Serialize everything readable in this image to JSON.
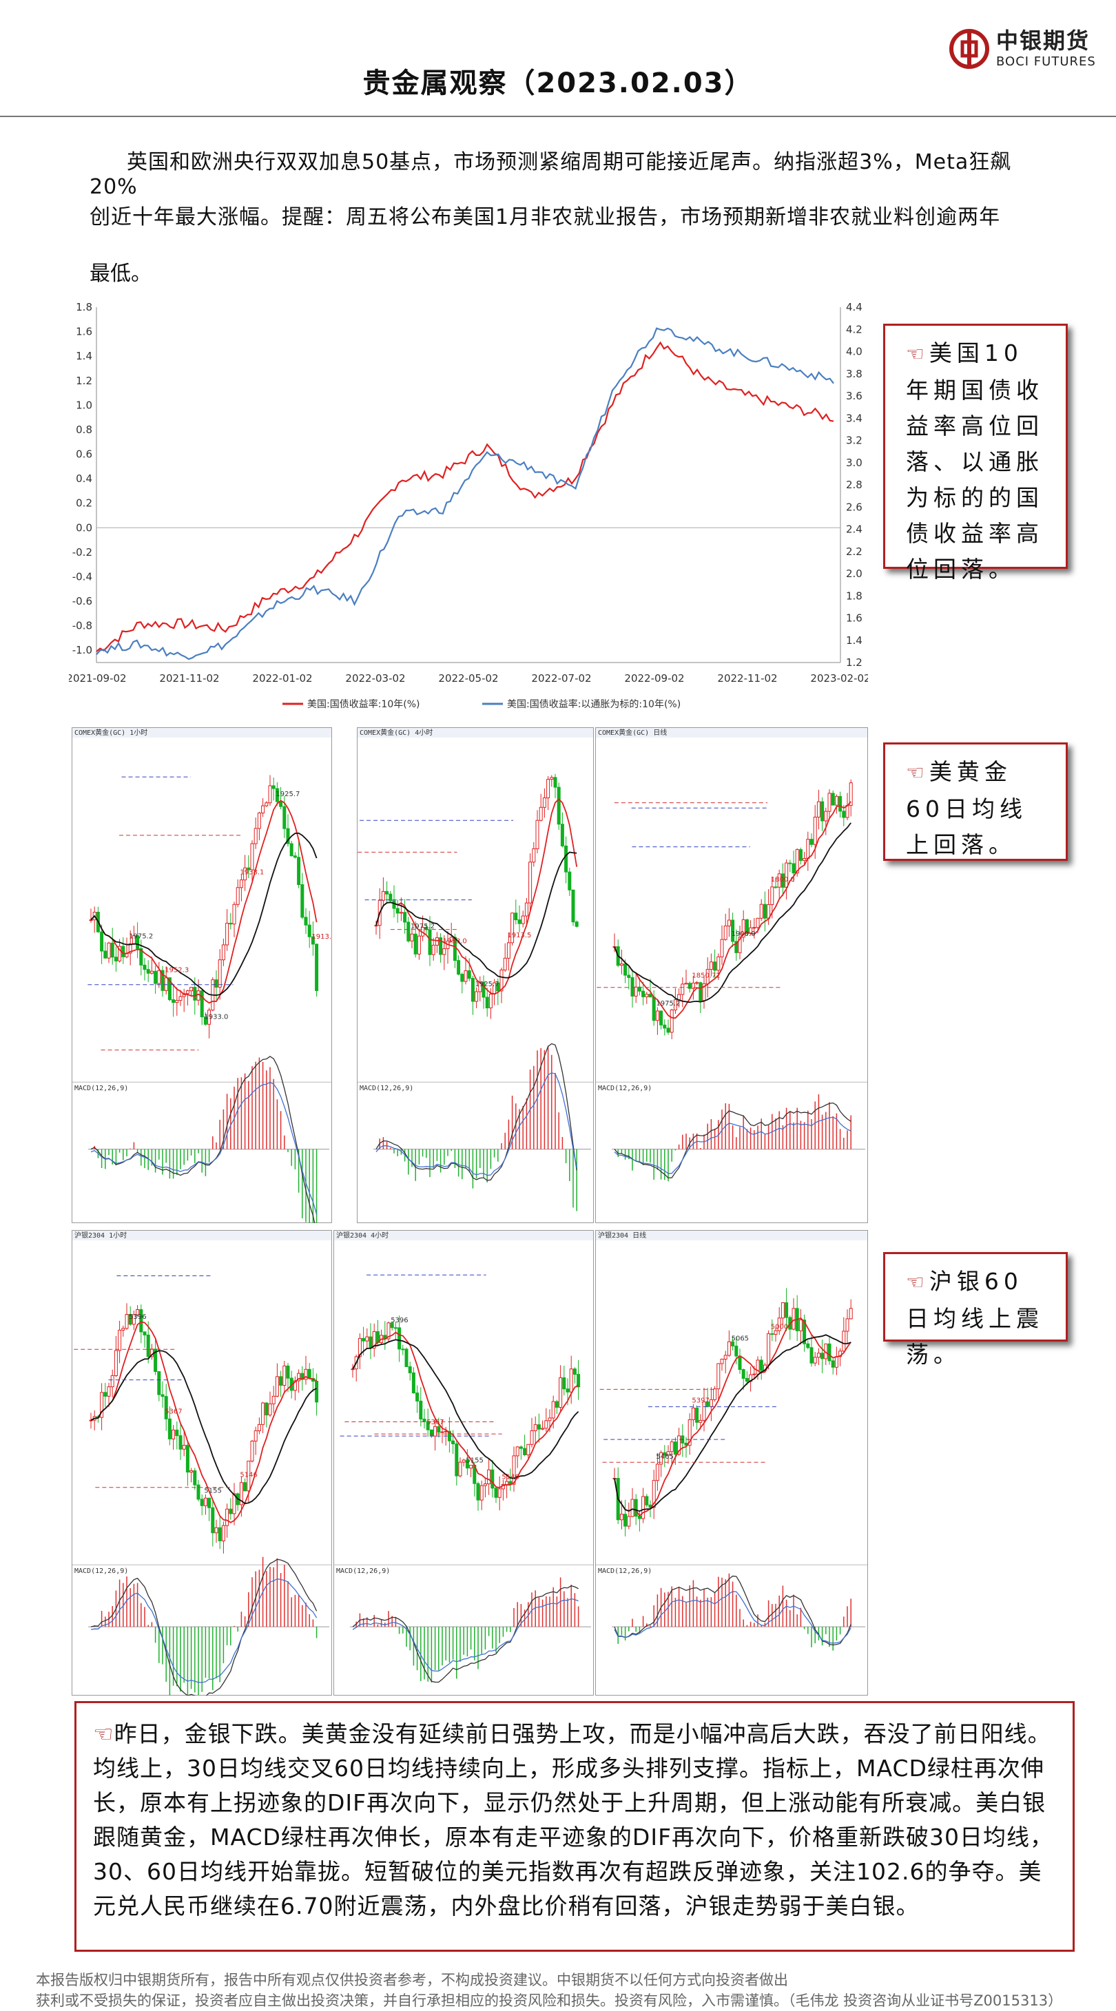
{
  "brand": {
    "cn": "中银期货",
    "en": "BOCI FUTURES"
  },
  "title": "贵金属观察（2023.02.03）",
  "intro": {
    "line1": "英国和欧洲央行双双加息50基点，市场预测紧缩周期可能接近尾声。纳指涨超3%，Meta狂飙20%",
    "line2": "创近十年最大涨幅。提醒：周五将公布美国1月非农就业报告，市场预期新增非农就业料创逾两年",
    "line3": "最低。"
  },
  "chart_data": {
    "type": "line",
    "x_ticks": [
      "2021-09-02",
      "2021-11-02",
      "2022-01-02",
      "2022-03-02",
      "2022-05-02",
      "2022-07-02",
      "2022-09-02",
      "2022-11-02",
      "2023-02-02"
    ],
    "left_axis_ticks": [
      "1.8",
      "1.6",
      "1.4",
      "1.2",
      "1.0",
      "0.8",
      "0.6",
      "0.4",
      "0.2",
      "0.0",
      "-0.2",
      "-0.4",
      "-0.6",
      "-0.8",
      "-1.0"
    ],
    "right_axis_ticks": [
      "4.4",
      "4.2",
      "4.0",
      "3.8",
      "3.6",
      "3.4",
      "3.2",
      "3.0",
      "2.8",
      "2.6",
      "2.4",
      "2.2",
      "2.0",
      "1.8",
      "1.6",
      "1.4",
      "1.2"
    ],
    "ylim_left": [
      -1.1,
      1.8
    ],
    "ylim_right": [
      1.2,
      4.4
    ],
    "series": [
      {
        "name": "美国:国债收益率:10年(%)",
        "axis": "right",
        "color": "#e02020",
        "x": [
          "2021-09",
          "2021-10",
          "2021-11",
          "2021-12",
          "2022-01",
          "2022-02",
          "2022-03",
          "2022-04",
          "2022-05",
          "2022-06",
          "2022-07",
          "2022-08",
          "2022-09",
          "2022-10",
          "2022-11",
          "2022-12",
          "2023-01",
          "2023-02"
        ],
        "values": [
          1.3,
          1.55,
          1.55,
          1.5,
          1.8,
          1.95,
          2.35,
          2.85,
          2.9,
          3.15,
          2.7,
          2.85,
          3.6,
          4.1,
          3.75,
          3.6,
          3.5,
          3.4
        ]
      },
      {
        "name": "美国:国债收益率:以通胀为标的:10年(%)",
        "axis": "left",
        "color": "#4a7fc1",
        "x": [
          "2021-09",
          "2021-10",
          "2021-11",
          "2021-12",
          "2022-01",
          "2022-02",
          "2022-03",
          "2022-04",
          "2022-05",
          "2022-06",
          "2022-07",
          "2022-08",
          "2022-09",
          "2022-10",
          "2022-11",
          "2022-12",
          "2023-01",
          "2023-02"
        ],
        "values": [
          -1.0,
          -0.95,
          -1.05,
          -0.95,
          -0.65,
          -0.5,
          -0.6,
          0.1,
          0.15,
          0.6,
          0.5,
          0.3,
          1.2,
          1.65,
          1.5,
          1.4,
          1.3,
          1.2
        ]
      }
    ]
  },
  "callouts": {
    "c1": "美国10年期国债收益率高位回落、以通胀为标的的国债收益率高位回落。",
    "c2": "美黄金60日均线上回落。",
    "c3": "沪银60日均线上震荡。"
  },
  "gold_panels": {
    "p1": {
      "head": "COMEX黄金(GC) 1小时",
      "labels": [
        "1975.2",
        "1952.3",
        "1933.0",
        "1938.1",
        "1925.7",
        "1913.5"
      ]
    },
    "p2": {
      "head": "COMEX黄金(GC) 4小时",
      "labels": [
        "1975.2",
        "1933.0",
        "1925.7",
        "1913.5"
      ]
    },
    "p3": {
      "head": "COMEX黄金(GC) 日线",
      "labels": [
        "1975.2",
        "1850.72",
        "1900.0",
        "1800.0"
      ]
    }
  },
  "silver_panels": {
    "p1": {
      "head": "沪银2304 1小时",
      "labels": [
        "5396",
        "5367",
        "5155",
        "5146"
      ]
    },
    "p2": {
      "head": "沪银2304 4小时",
      "labels": [
        "5396",
        "5367",
        "5155",
        "5146"
      ]
    },
    "p3": {
      "head": "沪银2304 日线",
      "labels": [
        "5465",
        "5397",
        "5065",
        "5000"
      ]
    }
  },
  "analysis": "昨日，金银下跌。美黄金没有延续前日强势上攻，而是小幅冲高后大跌，吞没了前日阳线。均线上，30日均线交叉60日均线持续向上，形成多头排列支撑。指标上，MACD绿柱再次伸长，原本有上拐迹象的DIF再次向下，显示仍然处于上升周期，但上涨动能有所衰减。美白银跟随黄金，MACD绿柱再次伸长，原本有走平迹象的DIF再次向下，价格重新跌破30日均线，30、60日均线开始靠拢。短暂破位的美元指数再次有超跌反弹迹象，关注102.6的争夺。美元兑人民币继续在6.70附近震荡，内外盘比价稍有回落，沪银走势弱于美白银。",
  "disclaimer": {
    "line1": "本报告版权归中银期货所有，报告中所有观点仅供投资者参考，不构成投资建议。中银期货不以任何方式向投资者做出",
    "line2": "获利或不受损失的保证，投资者应自主做出投资决策，并自行承担相应的投资风险和损失。投资有风险，入市需谨慎。",
    "author": "（毛伟龙  投资咨询从业证书号Z0015313）"
  }
}
